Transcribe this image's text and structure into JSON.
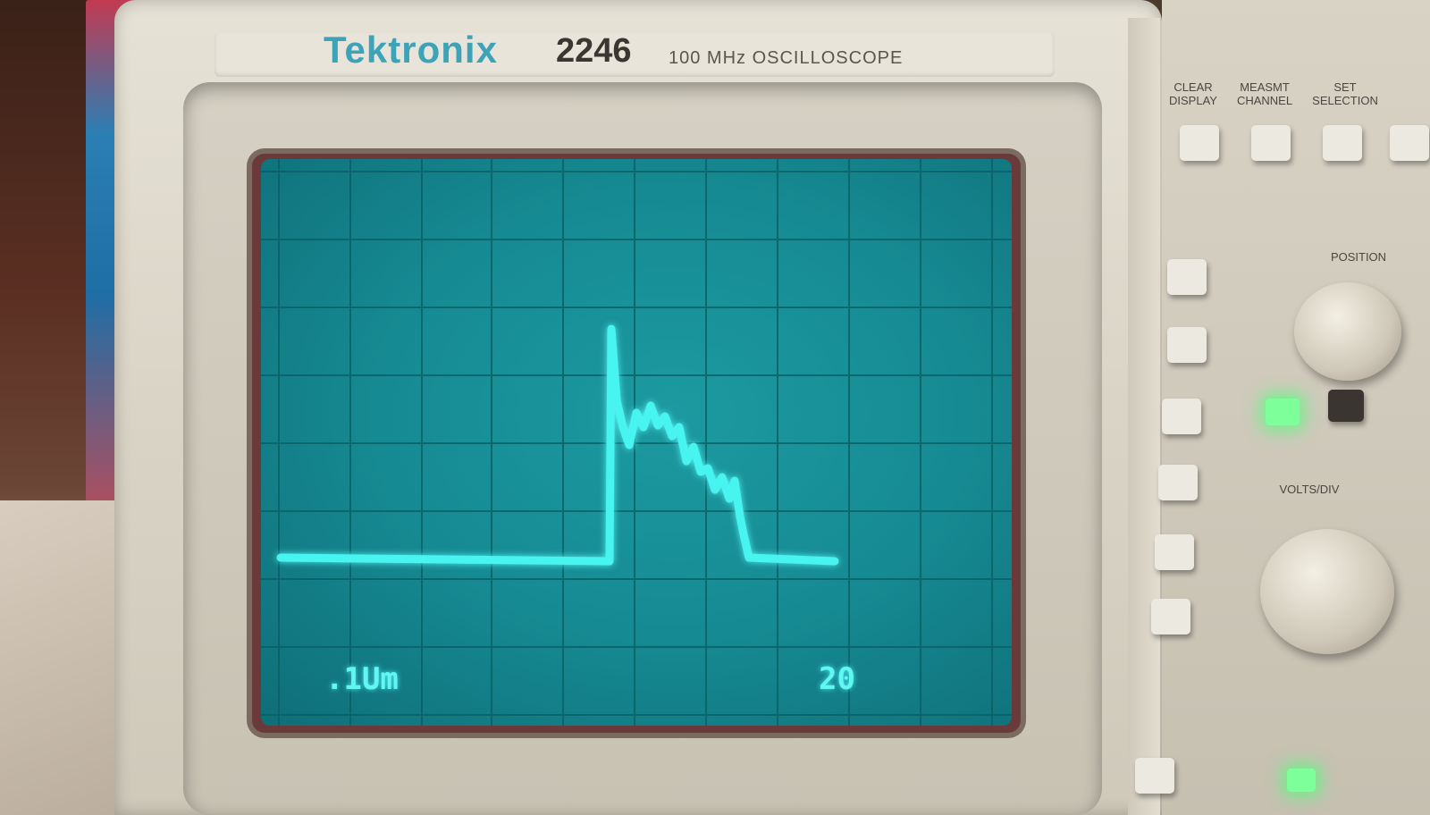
{
  "device": {
    "brand": "Tektronix",
    "model": "2246",
    "description": "100 MHz OSCILLOSCOPE"
  },
  "display": {
    "readout_left": ".1Um",
    "readout_right": "20",
    "trace_color": "#47f4f0",
    "screen_color": "#168a92"
  },
  "panel": {
    "top_labels": [
      "CLEAR DISPLAY",
      "MEASMT CHANNEL",
      "SET SELECTION"
    ],
    "position_label": "POSITION",
    "volts_label": "VOLTS/DIV"
  }
}
